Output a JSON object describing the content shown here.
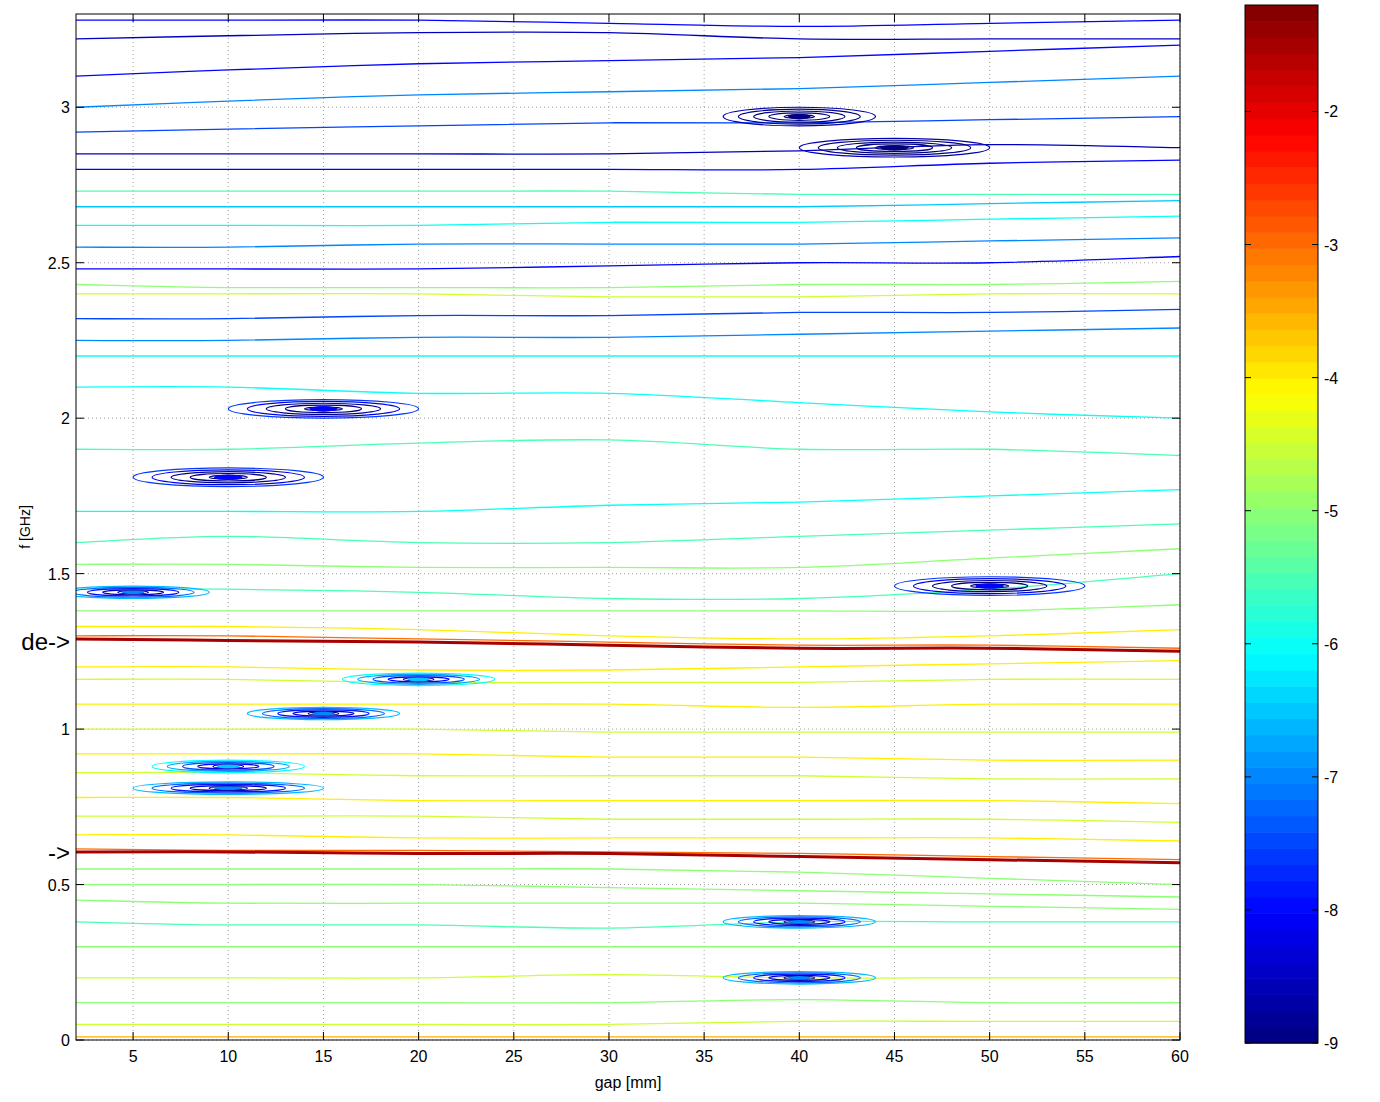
{
  "chart_data": {
    "type": "contour",
    "x_label": "gap [mm]",
    "y_label": "f [GHz]",
    "x": [
      2,
      10,
      20,
      30,
      40,
      50,
      60
    ],
    "xlim": [
      2,
      60
    ],
    "ylim": [
      0,
      3.3
    ],
    "xticks": [
      5,
      10,
      15,
      20,
      25,
      30,
      35,
      40,
      45,
      50,
      55,
      60
    ],
    "yticks": [
      0,
      0.5,
      1,
      1.5,
      2,
      2.5,
      3
    ],
    "grid": true,
    "contours": [
      {
        "level": -1.5,
        "values": [
          1.29,
          1.285,
          1.28,
          1.27,
          1.26,
          1.26,
          1.25
        ]
      },
      {
        "level": -1.5,
        "values": [
          0.605,
          0.605,
          0.6,
          0.6,
          0.59,
          0.58,
          0.57
        ]
      },
      {
        "level": -3.5,
        "values": [
          0.01,
          0.01,
          0.01,
          0.01,
          0.01,
          0.01,
          0.01
        ]
      },
      {
        "level": -3,
        "values": [
          1.3,
          1.3,
          1.29,
          1.28,
          1.27,
          1.27,
          1.26
        ]
      },
      {
        "level": -3,
        "values": [
          0.615,
          0.61,
          0.61,
          0.605,
          0.6,
          0.59,
          0.58
        ]
      },
      {
        "level": -4,
        "values": [
          1.33,
          1.33,
          1.32,
          1.3,
          1.29,
          1.3,
          1.32
        ]
      },
      {
        "level": -4,
        "values": [
          1.2,
          1.2,
          1.19,
          1.19,
          1.2,
          1.21,
          1.22
        ]
      },
      {
        "level": -4.5,
        "values": [
          1.16,
          1.16,
          1.15,
          1.15,
          1.15,
          1.16,
          1.16
        ]
      },
      {
        "level": -4,
        "values": [
          1.08,
          1.08,
          1.08,
          1.08,
          1.07,
          1.08,
          1.08
        ]
      },
      {
        "level": -4.5,
        "values": [
          1.0,
          1.0,
          1.0,
          0.99,
          0.99,
          0.99,
          0.99
        ]
      },
      {
        "level": -4,
        "values": [
          0.92,
          0.92,
          0.92,
          0.91,
          0.91,
          0.9,
          0.9
        ]
      },
      {
        "level": -4.5,
        "values": [
          0.86,
          0.86,
          0.85,
          0.85,
          0.85,
          0.84,
          0.84
        ]
      },
      {
        "level": -4,
        "values": [
          0.78,
          0.78,
          0.77,
          0.77,
          0.77,
          0.77,
          0.76
        ]
      },
      {
        "level": -4.5,
        "values": [
          0.72,
          0.72,
          0.72,
          0.71,
          0.71,
          0.71,
          0.7
        ]
      },
      {
        "level": -4,
        "values": [
          0.66,
          0.66,
          0.65,
          0.65,
          0.65,
          0.65,
          0.64
        ]
      },
      {
        "level": -5,
        "values": [
          0.55,
          0.55,
          0.55,
          0.55,
          0.54,
          0.52,
          0.5
        ]
      },
      {
        "level": -5,
        "values": [
          0.5,
          0.5,
          0.5,
          0.49,
          0.48,
          0.47,
          0.46
        ]
      },
      {
        "level": -4.5,
        "values": [
          0.05,
          0.05,
          0.05,
          0.05,
          0.06,
          0.06,
          0.06
        ]
      },
      {
        "level": -5,
        "values": [
          0.12,
          0.12,
          0.12,
          0.12,
          0.13,
          0.12,
          0.12
        ]
      },
      {
        "level": -4.5,
        "values": [
          0.2,
          0.2,
          0.2,
          0.21,
          0.2,
          0.2,
          0.2
        ]
      },
      {
        "level": -5,
        "values": [
          0.3,
          0.3,
          0.3,
          0.3,
          0.3,
          0.3,
          0.3
        ]
      },
      {
        "level": -5.5,
        "values": [
          0.38,
          0.37,
          0.37,
          0.36,
          0.38,
          0.38,
          0.38
        ]
      },
      {
        "level": -5,
        "values": [
          0.45,
          0.44,
          0.44,
          0.44,
          0.44,
          0.43,
          0.42
        ]
      },
      {
        "level": -5,
        "values": [
          1.38,
          1.38,
          1.38,
          1.38,
          1.38,
          1.38,
          1.4
        ]
      },
      {
        "level": -5.5,
        "values": [
          1.45,
          1.45,
          1.44,
          1.42,
          1.42,
          1.45,
          1.5
        ]
      },
      {
        "level": -5,
        "values": [
          1.53,
          1.53,
          1.52,
          1.52,
          1.52,
          1.55,
          1.58
        ]
      },
      {
        "level": -5.5,
        "values": [
          1.6,
          1.62,
          1.6,
          1.6,
          1.62,
          1.64,
          1.66
        ]
      },
      {
        "level": -6,
        "values": [
          1.7,
          1.7,
          1.7,
          1.72,
          1.73,
          1.75,
          1.77
        ]
      },
      {
        "level": -5.5,
        "values": [
          1.9,
          1.9,
          1.92,
          1.93,
          1.9,
          1.9,
          1.88
        ]
      },
      {
        "level": -6,
        "values": [
          2.1,
          2.1,
          2.08,
          2.08,
          2.05,
          2.02,
          2.0
        ]
      },
      {
        "level": -6,
        "values": [
          2.2,
          2.2,
          2.2,
          2.2,
          2.2,
          2.2,
          2.2
        ]
      },
      {
        "level": -5,
        "values": [
          2.43,
          2.42,
          2.42,
          2.42,
          2.43,
          2.43,
          2.44
        ]
      },
      {
        "level": -4.5,
        "values": [
          2.4,
          2.4,
          2.4,
          2.39,
          2.39,
          2.4,
          2.4
        ]
      },
      {
        "level": -7,
        "values": [
          2.25,
          2.25,
          2.26,
          2.26,
          2.27,
          2.28,
          2.29
        ]
      },
      {
        "level": -7.5,
        "values": [
          2.32,
          2.32,
          2.33,
          2.33,
          2.34,
          2.34,
          2.35
        ]
      },
      {
        "level": -8,
        "values": [
          2.48,
          2.48,
          2.48,
          2.49,
          2.5,
          2.5,
          2.52
        ]
      },
      {
        "level": -7,
        "values": [
          2.55,
          2.55,
          2.56,
          2.56,
          2.56,
          2.57,
          2.58
        ]
      },
      {
        "level": -6,
        "values": [
          2.62,
          2.62,
          2.62,
          2.63,
          2.63,
          2.64,
          2.65
        ]
      },
      {
        "level": -6.5,
        "values": [
          2.68,
          2.68,
          2.68,
          2.68,
          2.68,
          2.69,
          2.7
        ]
      },
      {
        "level": -5.5,
        "values": [
          2.73,
          2.73,
          2.73,
          2.73,
          2.72,
          2.72,
          2.72
        ]
      },
      {
        "level": -8,
        "values": [
          2.8,
          2.8,
          2.8,
          2.8,
          2.8,
          2.82,
          2.83
        ]
      },
      {
        "level": -8.5,
        "values": [
          2.85,
          2.85,
          2.85,
          2.85,
          2.86,
          2.88,
          2.87
        ]
      },
      {
        "level": -7.5,
        "values": [
          2.92,
          2.93,
          2.94,
          2.95,
          2.95,
          2.96,
          2.97
        ]
      },
      {
        "level": -7,
        "values": [
          3.0,
          3.02,
          3.04,
          3.05,
          3.06,
          3.08,
          3.1
        ]
      },
      {
        "level": -8,
        "values": [
          3.1,
          3.12,
          3.14,
          3.15,
          3.16,
          3.18,
          3.2
        ]
      },
      {
        "level": -8.5,
        "values": [
          3.22,
          3.23,
          3.24,
          3.24,
          3.22,
          3.22,
          3.22
        ]
      },
      {
        "level": -8,
        "values": [
          3.28,
          3.28,
          3.28,
          3.27,
          3.26,
          3.27,
          3.28
        ]
      }
    ],
    "spots": [
      {
        "x": 10,
        "y": 1.81,
        "dx": 5,
        "dy": 0.03,
        "level": -8
      },
      {
        "x": 15,
        "y": 2.03,
        "dx": 5,
        "dy": 0.03,
        "level": -8
      },
      {
        "x": 5,
        "y": 1.44,
        "dx": 4,
        "dy": 0.02,
        "level": -7
      },
      {
        "x": 15,
        "y": 1.05,
        "dx": 4,
        "dy": 0.02,
        "level": -7
      },
      {
        "x": 10,
        "y": 0.81,
        "dx": 5,
        "dy": 0.02,
        "level": -7
      },
      {
        "x": 10,
        "y": 0.88,
        "dx": 4,
        "dy": 0.02,
        "level": -6.5
      },
      {
        "x": 20,
        "y": 1.16,
        "dx": 4,
        "dy": 0.02,
        "level": -6.5
      },
      {
        "x": 50,
        "y": 1.46,
        "dx": 5,
        "dy": 0.03,
        "level": -8
      },
      {
        "x": 40,
        "y": 0.38,
        "dx": 4,
        "dy": 0.02,
        "level": -7
      },
      {
        "x": 40,
        "y": 0.2,
        "dx": 4,
        "dy": 0.02,
        "level": -7
      },
      {
        "x": 45,
        "y": 2.87,
        "dx": 5,
        "dy": 0.03,
        "level": -9
      },
      {
        "x": 40,
        "y": 2.97,
        "dx": 4,
        "dy": 0.03,
        "level": -9
      }
    ],
    "annotations": [
      {
        "text": "de->",
        "y": 1.28
      },
      {
        "text": "->",
        "y": 0.6
      }
    ],
    "colorbar": {
      "lim": [
        -9,
        -1.2
      ],
      "ticks": [
        -2,
        -3,
        -4,
        -5,
        -6,
        -7,
        -8,
        -9
      ]
    }
  }
}
